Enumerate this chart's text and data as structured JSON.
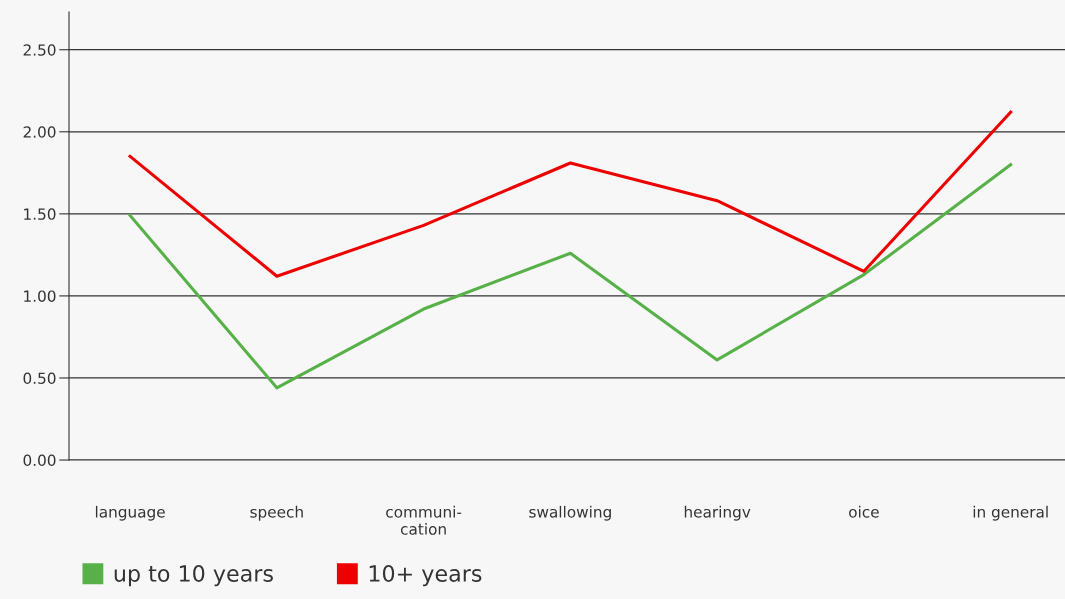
{
  "chart_data": {
    "type": "line",
    "categories": [
      "language",
      "speech",
      "communi-\ncation",
      "swallowing",
      "hearingv",
      "oice",
      "in general"
    ],
    "series": [
      {
        "name": "up to 10 years",
        "color": "#57b148",
        "values": [
          1.49,
          0.44,
          0.92,
          1.26,
          0.61,
          1.13,
          1.8
        ]
      },
      {
        "name": "10+ years",
        "color": "#ee0000",
        "values": [
          1.85,
          1.12,
          1.43,
          1.81,
          1.58,
          1.15,
          2.12
        ]
      }
    ],
    "ylim": [
      0,
      2.73
    ],
    "yticks": [
      {
        "value": 0,
        "label": "0.00"
      },
      {
        "value": 0.5,
        "label": "0.50"
      },
      {
        "value": 1,
        "label": "1.00"
      },
      {
        "value": 1.5,
        "label": "1.50"
      },
      {
        "value": 2,
        "label": "2.00"
      },
      {
        "value": 2.5,
        "label": "2.50"
      }
    ],
    "grid": "y",
    "legend": "bottom left",
    "marker": "none",
    "line_style": "solid"
  }
}
